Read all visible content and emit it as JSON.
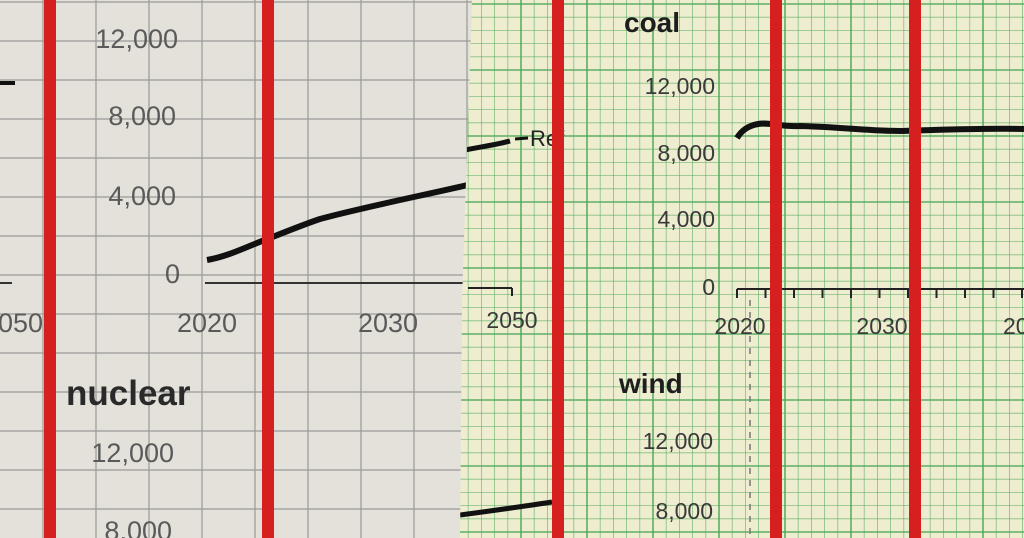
{
  "left_panel": {
    "previous_chart": {
      "x_tick": "050"
    },
    "top_chart": {
      "yticks": [
        "12,000",
        "8,000",
        "4,000",
        "0"
      ],
      "xticks": [
        "2020",
        "2030"
      ]
    },
    "nuclear_chart": {
      "title": "nuclear",
      "yticks": [
        "12,000",
        "8,000"
      ]
    }
  },
  "right_panel": {
    "previous_chart": {
      "series_label": "Ref",
      "x_tick": "2050"
    },
    "coal_chart": {
      "title": "coal",
      "yticks": [
        "12,000",
        "8,000",
        "4,000",
        "0"
      ],
      "xticks": [
        "2020",
        "2030",
        "20"
      ]
    },
    "wind_chart": {
      "title": "wind",
      "yticks": [
        "12,000",
        "8,000"
      ]
    }
  }
}
